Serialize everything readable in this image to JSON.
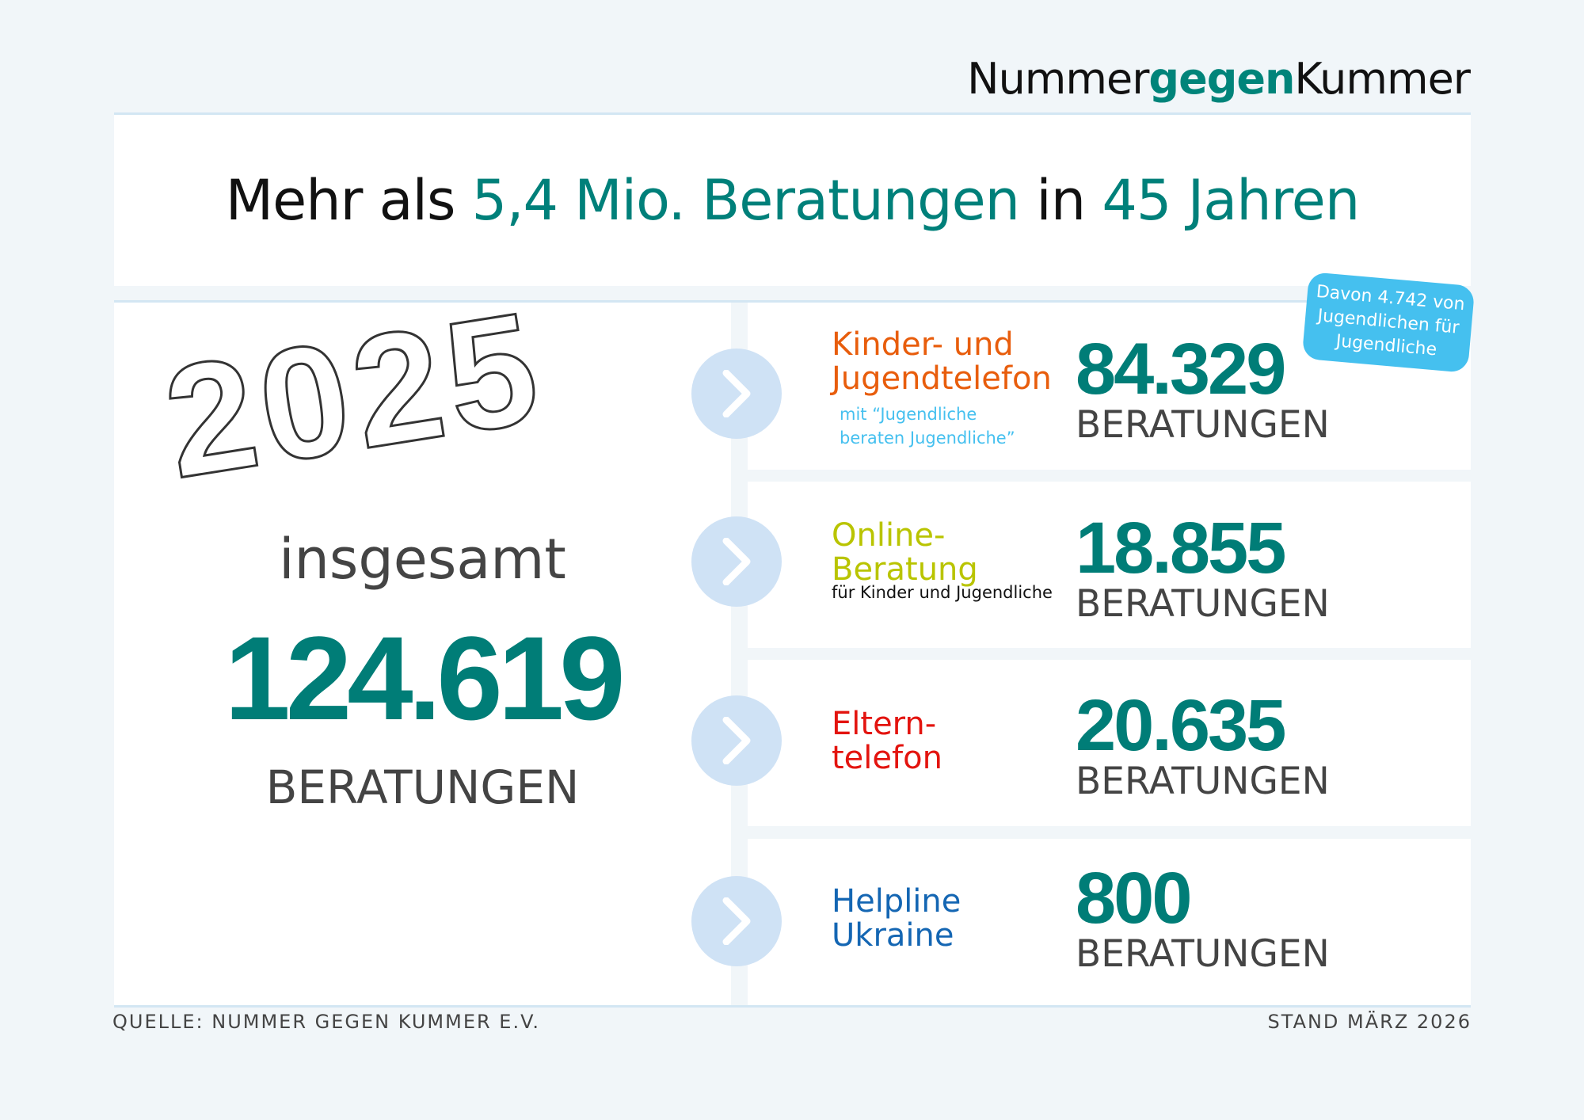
{
  "logo": {
    "part1": "Nummer",
    "part2": "gegen",
    "part3": "Kummer"
  },
  "title": {
    "p1": "Mehr als ",
    "p2": "5,4 Mio. Beratungen",
    "p3": " in ",
    "p4": "45 Jahren"
  },
  "summary": {
    "year": "2025",
    "label": "insgesamt",
    "total": "124.619",
    "unit": "BERATUNGEN"
  },
  "colors": {
    "teal": "#007d77",
    "orange": "#e85d0c",
    "lime": "#b9c400",
    "red": "#e3140f",
    "blue": "#1466b3",
    "badge": "#45c0ef"
  },
  "services": [
    {
      "line1": "Kinder- und",
      "line2": "Jugendtelefon",
      "sub1": "mit “Jugendliche",
      "sub2": "beraten Jugendliche”",
      "value": "84.329",
      "unit": "BERATUNGEN",
      "icon": "chevron-right-icon"
    },
    {
      "line1": "Online-",
      "line2": "Beratung",
      "sub1": "für Kinder und Jugendliche",
      "value": "18.855",
      "unit": "BERATUNGEN",
      "icon": "chevron-right-icon"
    },
    {
      "line1": "Eltern-",
      "line2": "telefon",
      "value": "20.635",
      "unit": "BERATUNGEN",
      "icon": "chevron-right-icon"
    },
    {
      "line1": "Helpline",
      "line2": "Ukraine",
      "value": "800",
      "unit": "BERATUNGEN",
      "icon": "chevron-right-icon"
    }
  ],
  "badge": {
    "l1": "Davon 4.742 von",
    "l2": "Jugendlichen für",
    "l3": "Jugendliche"
  },
  "footer": {
    "source": "QUELLE: NUMMER GEGEN KUMMER E.V.",
    "date": "STAND MÄRZ 2026"
  }
}
